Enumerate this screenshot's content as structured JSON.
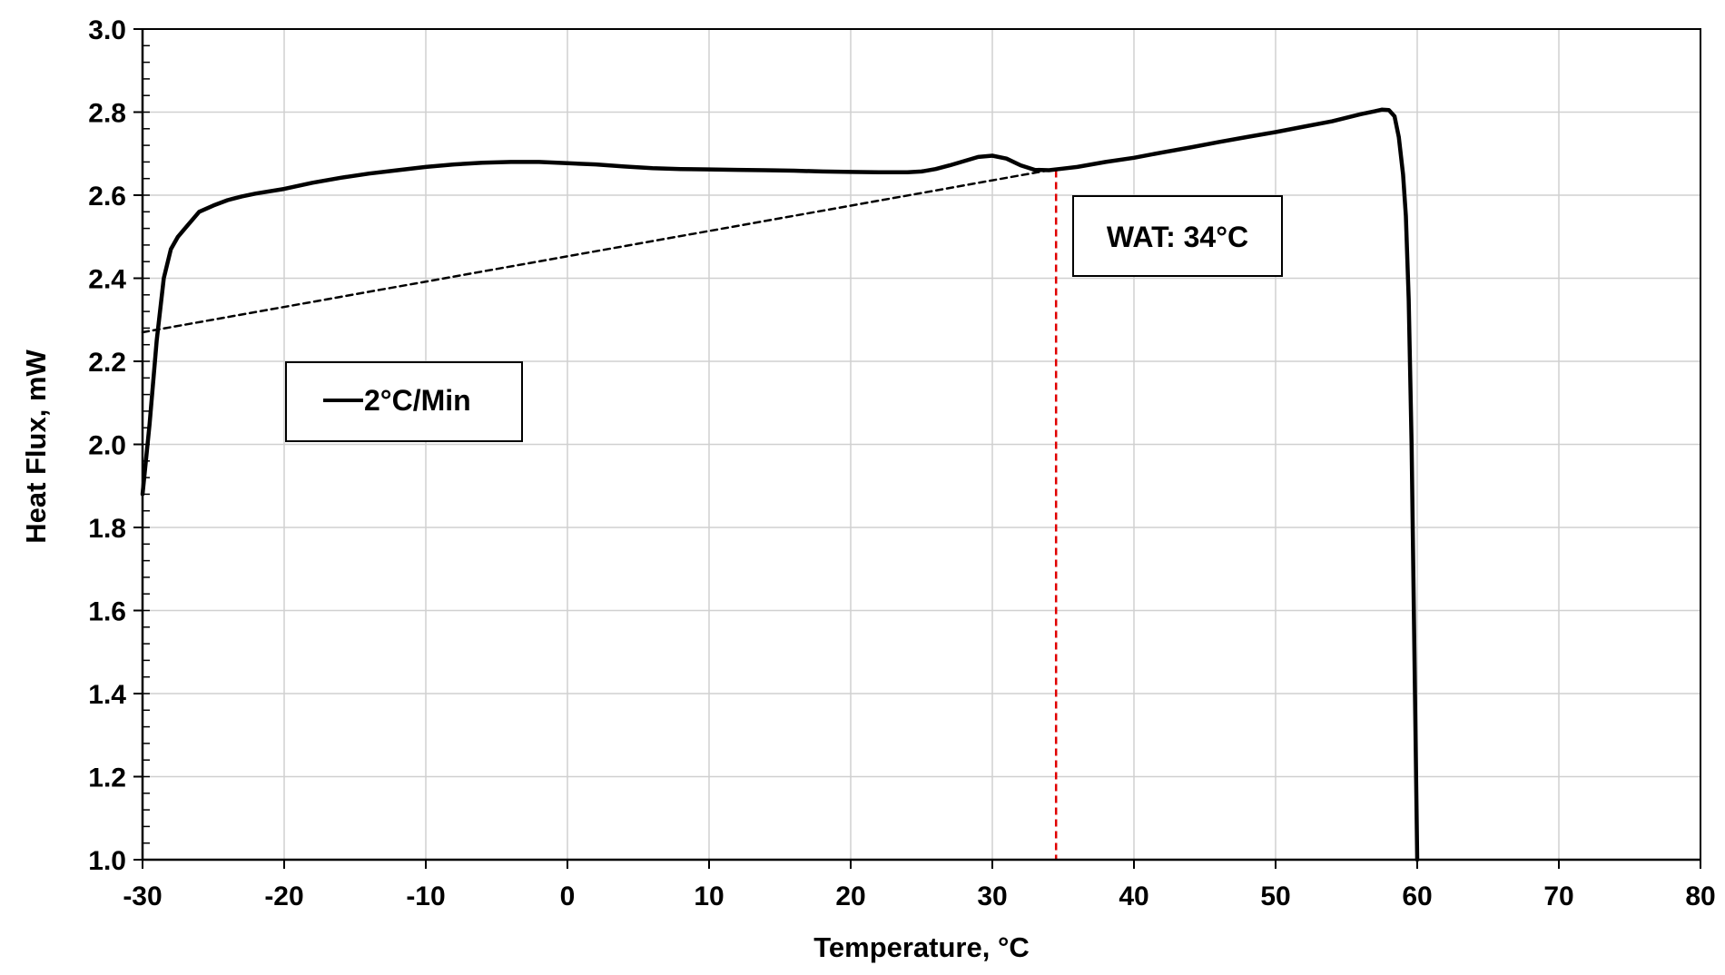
{
  "chart_data": {
    "type": "line",
    "xlabel": "Temperature, °C",
    "ylabel": "Heat Flux, mW",
    "xlim": [
      -30,
      80
    ],
    "ylim": [
      1.0,
      3.0
    ],
    "x_ticks": [
      -30,
      -20,
      -10,
      0,
      10,
      20,
      30,
      40,
      50,
      60,
      70,
      80
    ],
    "y_ticks": [
      1.0,
      1.2,
      1.4,
      1.6,
      1.8,
      2.0,
      2.2,
      2.4,
      2.6,
      2.8,
      3.0
    ],
    "x_tick_labels": [
      "-30",
      "-20",
      "-10",
      "0",
      "10",
      "20",
      "30",
      "40",
      "50",
      "60",
      "70",
      "80"
    ],
    "y_tick_labels": [
      "1.0",
      "1.2",
      "1.4",
      "1.6",
      "1.8",
      "2.0",
      "2.2",
      "2.4",
      "2.6",
      "2.8",
      "3.0"
    ],
    "grid": true,
    "legend": {
      "position": "left",
      "entries": [
        "2°C/Min"
      ]
    },
    "series": [
      {
        "name": "2°C/Min",
        "color": "#000000",
        "style": "solid",
        "x": [
          -30.0,
          -29.5,
          -29.0,
          -28.5,
          -28.0,
          -27.5,
          -27.0,
          -26.5,
          -26.0,
          -25.0,
          -24.0,
          -23.0,
          -22.0,
          -20.0,
          -18.0,
          -16.0,
          -14.0,
          -12.0,
          -10.0,
          -8.0,
          -6.0,
          -4.0,
          -2.0,
          0.0,
          2.0,
          4.0,
          6.0,
          8.0,
          10.0,
          12.0,
          14.0,
          16.0,
          18.0,
          20.0,
          22.0,
          24.0,
          25.0,
          26.0,
          27.0,
          28.0,
          29.0,
          30.0,
          31.0,
          32.0,
          33.0,
          34.0,
          35.0,
          36.0,
          38.0,
          40.0,
          42.0,
          44.0,
          46.0,
          48.0,
          50.0,
          52.0,
          54.0,
          56.0,
          57.0,
          57.5,
          58.0,
          58.4,
          58.7,
          59.0,
          59.2,
          59.4,
          59.6,
          59.8,
          60.0
        ],
        "y": [
          1.88,
          2.05,
          2.25,
          2.4,
          2.47,
          2.5,
          2.52,
          2.54,
          2.56,
          2.575,
          2.588,
          2.597,
          2.604,
          2.615,
          2.63,
          2.642,
          2.652,
          2.66,
          2.668,
          2.674,
          2.678,
          2.68,
          2.68,
          2.677,
          2.674,
          2.669,
          2.665,
          2.663,
          2.662,
          2.661,
          2.66,
          2.659,
          2.657,
          2.656,
          2.655,
          2.655,
          2.657,
          2.663,
          2.672,
          2.682,
          2.692,
          2.695,
          2.688,
          2.672,
          2.661,
          2.66,
          2.664,
          2.668,
          2.68,
          2.69,
          2.703,
          2.715,
          2.728,
          2.74,
          2.752,
          2.765,
          2.778,
          2.795,
          2.802,
          2.806,
          2.805,
          2.79,
          2.74,
          2.65,
          2.55,
          2.35,
          2.0,
          1.5,
          1.0
        ]
      },
      {
        "name": "baseline",
        "color": "#000000",
        "style": "dashed",
        "x": [
          -30.0,
          34.0
        ],
        "y": [
          2.27,
          2.66
        ]
      }
    ],
    "annotations": [
      {
        "text": "WAT: 34°C",
        "type": "vertical-line",
        "x": 34.5,
        "y_range": [
          1.0,
          2.66
        ],
        "color": "#e00000",
        "style": "dashed"
      }
    ]
  }
}
